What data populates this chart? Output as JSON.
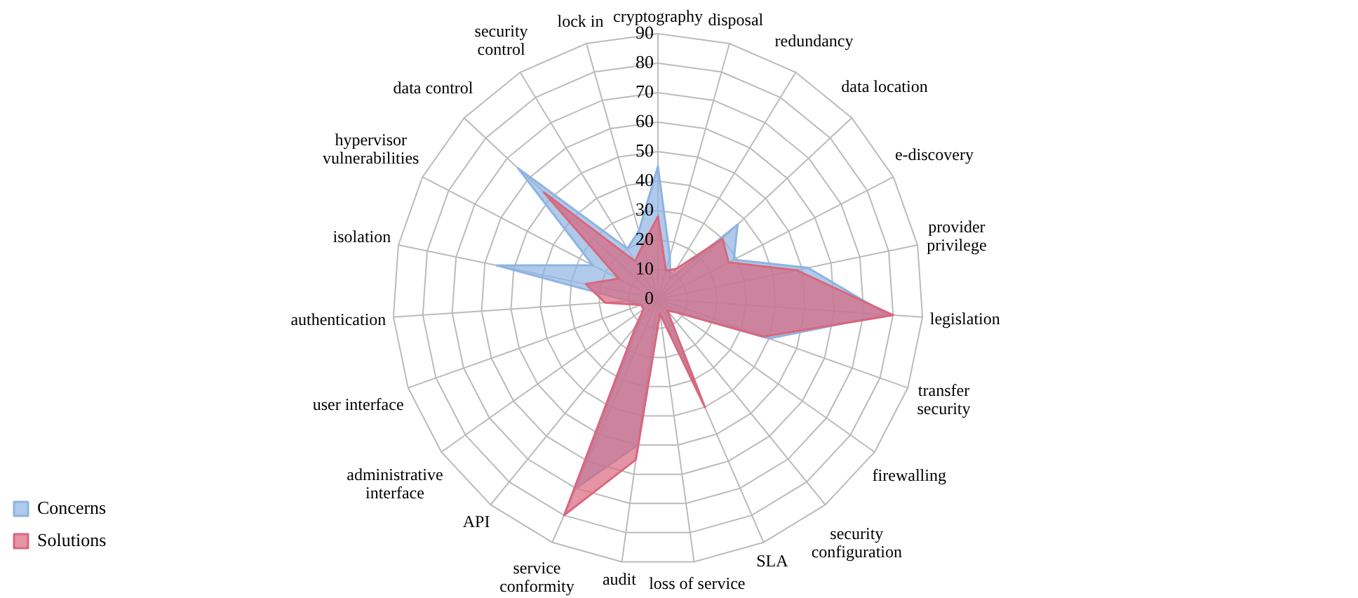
{
  "chart_data": {
    "type": "radar",
    "categories": [
      "cryptography",
      "disposal",
      "redundancy",
      "data location",
      "e-discovery",
      "provider privilege",
      "legislation",
      "transfer security",
      "firewalling",
      "security configuration",
      "SLA",
      "loss of service",
      "audit",
      "service conformity",
      "API",
      "administrative interface",
      "user interface",
      "authentication",
      "isolation",
      "hypervisor vulnerabilities",
      "data control",
      "security control",
      "lock in"
    ],
    "series": [
      {
        "name": "Concerns",
        "color": "#8db4e2",
        "values": [
          45,
          15,
          8,
          37,
          29,
          52,
          78,
          40,
          8,
          5,
          38,
          5,
          50,
          70,
          10,
          6,
          6,
          10,
          56,
          25,
          65,
          20,
          24
        ]
      },
      {
        "name": "Solutions",
        "color": "#d9677d",
        "values": [
          28,
          10,
          12,
          30,
          27,
          48,
          80,
          38,
          8,
          5,
          40,
          5,
          55,
          80,
          12,
          6,
          6,
          18,
          25,
          15,
          53,
          15,
          19
        ]
      }
    ],
    "ylim": [
      0,
      90
    ],
    "yticks": [
      0,
      10,
      20,
      30,
      40,
      50,
      60,
      70,
      80,
      90
    ],
    "grid": true,
    "legend": "bottom left"
  }
}
